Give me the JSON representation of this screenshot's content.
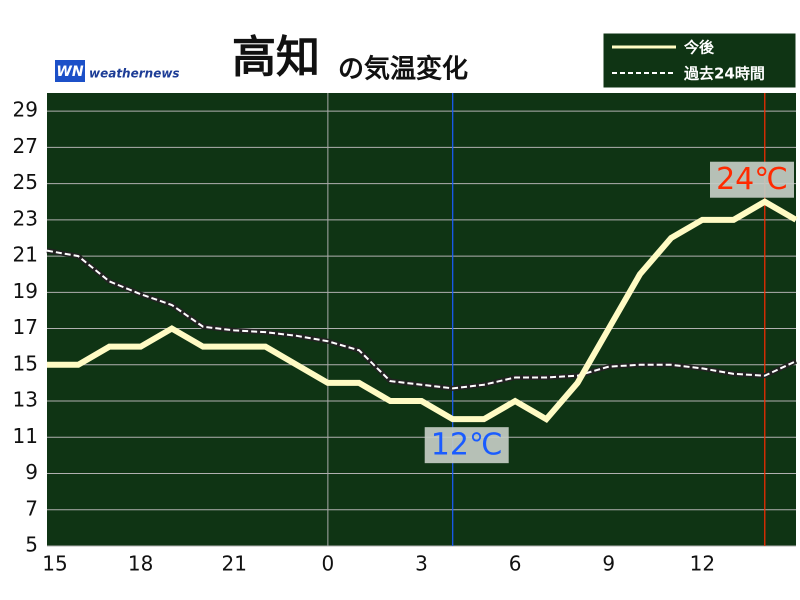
{
  "chart_data": {
    "type": "line",
    "title": "高知",
    "subtitle": "の気温変化",
    "logo": "weathernews",
    "categories": [
      "15",
      null,
      null,
      "18",
      null,
      null,
      "21",
      null,
      null,
      "0",
      null,
      null,
      "3",
      null,
      null,
      "6",
      null,
      null,
      "9",
      null,
      null,
      "12",
      null,
      null,
      null
    ],
    "series": [
      {
        "name": "今後",
        "color": "#fffbc4",
        "dashed": false,
        "values": [
          15,
          15,
          16,
          16,
          17,
          16,
          16,
          16,
          15,
          14,
          14,
          13,
          13,
          12,
          12,
          13,
          12,
          14,
          17,
          20,
          22,
          23,
          23,
          24,
          23
        ]
      },
      {
        "name": "過去24時間",
        "color": "#ffffff",
        "dashed": true,
        "values": [
          21.3,
          21.0,
          19.6,
          18.9,
          18.3,
          17.1,
          16.9,
          16.8,
          16.6,
          16.3,
          15.8,
          14.1,
          13.9,
          13.7,
          13.9,
          14.3,
          14.3,
          14.4,
          14.9,
          15.0,
          15.0,
          14.8,
          14.5,
          14.4,
          15.2
        ]
      }
    ],
    "annotations": [
      {
        "text": "12℃",
        "at": 13,
        "color": "#1a5cff"
      },
      {
        "text": "24℃",
        "at": 23,
        "color": "#ff2a00"
      }
    ],
    "ylim": [
      5,
      30
    ],
    "yticks": [
      5,
      7,
      9,
      11,
      13,
      15,
      17,
      19,
      21,
      23,
      25,
      27,
      29
    ],
    "grid": true,
    "legend": "top-right",
    "background": "#0f3414"
  }
}
